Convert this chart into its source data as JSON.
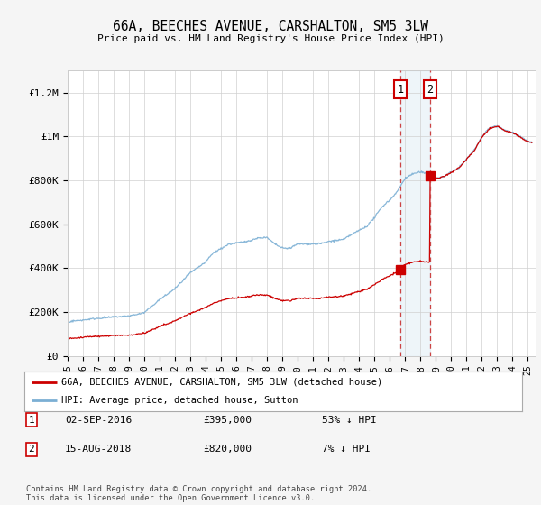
{
  "title": "66A, BEECHES AVENUE, CARSHALTON, SM5 3LW",
  "subtitle": "Price paid vs. HM Land Registry's House Price Index (HPI)",
  "ylabel_ticks": [
    "£0",
    "£200K",
    "£400K",
    "£600K",
    "£800K",
    "£1M",
    "£1.2M"
  ],
  "ytick_values": [
    0,
    200000,
    400000,
    600000,
    800000,
    1000000,
    1200000
  ],
  "ylim": [
    0,
    1300000
  ],
  "xlim_start": 1995.0,
  "xlim_end": 2025.5,
  "hpi_color": "#7bafd4",
  "price_color": "#cc0000",
  "bg_color": "#f5f5f5",
  "plot_bg": "#ffffff",
  "transaction1_year": 2016.67,
  "transaction1_price": 395000,
  "transaction2_year": 2018.62,
  "transaction2_price": 820000,
  "legend1_text": "66A, BEECHES AVENUE, CARSHALTON, SM5 3LW (detached house)",
  "legend2_text": "HPI: Average price, detached house, Sutton",
  "ann1_date": "02-SEP-2016",
  "ann1_price": "£395,000",
  "ann1_hpi": "53% ↓ HPI",
  "ann2_date": "15-AUG-2018",
  "ann2_price": "£820,000",
  "ann2_hpi": "7% ↓ HPI",
  "footer": "Contains HM Land Registry data © Crown copyright and database right 2024.\nThis data is licensed under the Open Government Licence v3.0."
}
